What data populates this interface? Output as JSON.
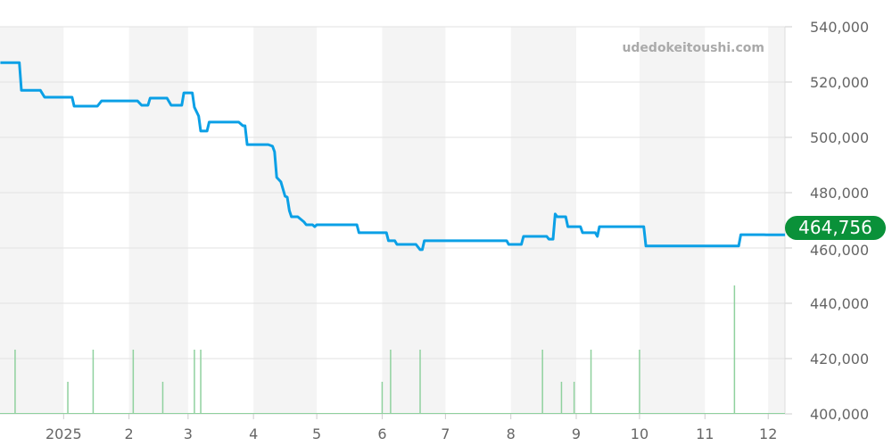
{
  "watermark": "udedokeitoushi.com",
  "current_price_label": "464,756",
  "chart_data": {
    "type": "line",
    "ylim": [
      400000,
      540000
    ],
    "y_ticks": [
      "540,000",
      "520,000",
      "500,000",
      "480,000",
      "460,000",
      "440,000",
      "420,000",
      "400,000"
    ],
    "y_tick_values": [
      540000,
      520000,
      500000,
      480000,
      460000,
      440000,
      420000,
      400000
    ],
    "x_ticks": [
      {
        "date": "2025-01-01",
        "label": "2025"
      },
      {
        "date": "2025-02-01",
        "label": "2"
      },
      {
        "date": "2025-03-01",
        "label": "3"
      },
      {
        "date": "2025-04-01",
        "label": "4"
      },
      {
        "date": "2025-05-01",
        "label": "5"
      },
      {
        "date": "2025-06-01",
        "label": "6"
      },
      {
        "date": "2025-07-01",
        "label": "7"
      },
      {
        "date": "2025-08-01",
        "label": "8"
      },
      {
        "date": "2025-09-01",
        "label": "9"
      },
      {
        "date": "2025-10-01",
        "label": "10"
      },
      {
        "date": "2025-11-01",
        "label": "11"
      },
      {
        "date": "2025-12-01",
        "label": "12"
      }
    ],
    "grid": true,
    "colors": {
      "line": "#0ba0e6",
      "volume": "#8fd19e",
      "band": "#f4f4f4",
      "badge": "#0a9139"
    },
    "price": [
      [
        "2024-12-02",
        527000
      ],
      [
        "2024-12-11",
        527000
      ],
      [
        "2024-12-12",
        517000
      ],
      [
        "2024-12-21",
        517000
      ],
      [
        "2024-12-23",
        514500
      ],
      [
        "2025-01-05",
        514500
      ],
      [
        "2025-01-06",
        511300
      ],
      [
        "2025-01-17",
        511300
      ],
      [
        "2025-01-19",
        513200
      ],
      [
        "2025-02-05",
        513200
      ],
      [
        "2025-02-07",
        511600
      ],
      [
        "2025-02-10",
        511600
      ],
      [
        "2025-02-11",
        514200
      ],
      [
        "2025-02-19",
        514200
      ],
      [
        "2025-02-21",
        511600
      ],
      [
        "2025-02-26",
        511600
      ],
      [
        "2025-02-27",
        516100
      ],
      [
        "2025-03-03",
        516100
      ],
      [
        "2025-03-04",
        510900
      ],
      [
        "2025-03-06",
        507700
      ],
      [
        "2025-03-07",
        502300
      ],
      [
        "2025-03-10",
        502300
      ],
      [
        "2025-03-11",
        505500
      ],
      [
        "2025-03-25",
        505500
      ],
      [
        "2025-03-27",
        504200
      ],
      [
        "2025-03-28",
        504200
      ],
      [
        "2025-03-29",
        497400
      ],
      [
        "2025-04-08",
        497400
      ],
      [
        "2025-04-10",
        496800
      ],
      [
        "2025-04-11",
        494800
      ],
      [
        "2025-04-12",
        485500
      ],
      [
        "2025-04-14",
        483900
      ],
      [
        "2025-04-16",
        478700
      ],
      [
        "2025-04-17",
        478400
      ],
      [
        "2025-04-18",
        473500
      ],
      [
        "2025-04-19",
        471300
      ],
      [
        "2025-04-22",
        471300
      ],
      [
        "2025-04-25",
        469400
      ],
      [
        "2025-04-26",
        468400
      ],
      [
        "2025-04-29",
        468400
      ],
      [
        "2025-04-30",
        467700
      ],
      [
        "2025-05-01",
        468400
      ],
      [
        "2025-05-20",
        468400
      ],
      [
        "2025-05-21",
        465500
      ],
      [
        "2025-06-03",
        465500
      ],
      [
        "2025-06-04",
        462600
      ],
      [
        "2025-06-07",
        462600
      ],
      [
        "2025-06-08",
        461300
      ],
      [
        "2025-06-17",
        461300
      ],
      [
        "2025-06-19",
        459400
      ],
      [
        "2025-06-20",
        459400
      ],
      [
        "2025-06-21",
        462600
      ],
      [
        "2025-07-30",
        462600
      ],
      [
        "2025-07-31",
        461300
      ],
      [
        "2025-08-06",
        461300
      ],
      [
        "2025-08-07",
        464200
      ],
      [
        "2025-08-18",
        464200
      ],
      [
        "2025-08-19",
        463200
      ],
      [
        "2025-08-21",
        463200
      ],
      [
        "2025-08-22",
        472300
      ],
      [
        "2025-08-23",
        471300
      ],
      [
        "2025-08-27",
        471300
      ],
      [
        "2025-08-28",
        467700
      ],
      [
        "2025-09-03",
        467700
      ],
      [
        "2025-09-04",
        465500
      ],
      [
        "2025-09-10",
        465500
      ],
      [
        "2025-09-11",
        464200
      ],
      [
        "2025-09-12",
        467700
      ],
      [
        "2025-10-03",
        467700
      ],
      [
        "2025-10-04",
        460700
      ],
      [
        "2025-11-17",
        460700
      ],
      [
        "2025-11-18",
        464800
      ],
      [
        "2025-11-29",
        464800
      ],
      [
        "2025-11-30",
        464756
      ],
      [
        "2025-12-09",
        464756
      ]
    ],
    "volume": [
      [
        "2024-12-09",
        2
      ],
      [
        "2025-01-03",
        1
      ],
      [
        "2025-01-15",
        2
      ],
      [
        "2025-02-03",
        2
      ],
      [
        "2025-02-17",
        1
      ],
      [
        "2025-03-04",
        2
      ],
      [
        "2025-03-07",
        2
      ],
      [
        "2025-06-01",
        1
      ],
      [
        "2025-06-05",
        2
      ],
      [
        "2025-06-19",
        2
      ],
      [
        "2025-08-16",
        2
      ],
      [
        "2025-08-25",
        1
      ],
      [
        "2025-08-31",
        1
      ],
      [
        "2025-09-08",
        2
      ],
      [
        "2025-10-01",
        2
      ],
      [
        "2025-11-15",
        4
      ]
    ]
  }
}
